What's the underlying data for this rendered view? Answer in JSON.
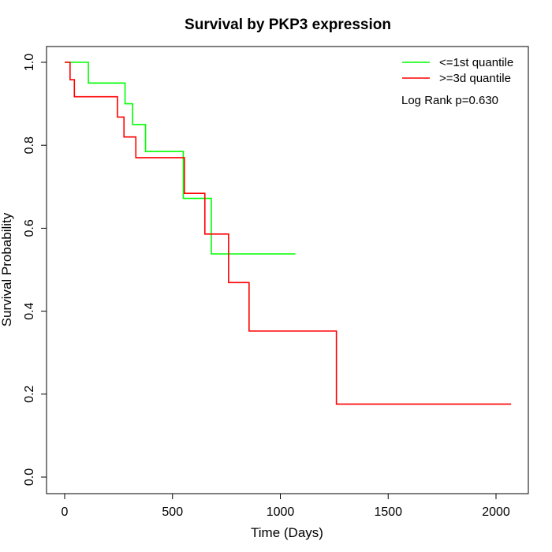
{
  "chart_data": {
    "type": "line",
    "title": "Survival by PKP3 expression",
    "xlabel": "Time (Days)",
    "ylabel": "Survival Probability",
    "xlim": [
      0,
      2070
    ],
    "ylim": [
      0,
      1.0
    ],
    "x_ticks": [
      0,
      500,
      1000,
      1500,
      2000
    ],
    "x_tick_labels": [
      "0",
      "500",
      "1000",
      "1500",
      "2000"
    ],
    "y_ticks": [
      0.0,
      0.2,
      0.4,
      0.6,
      0.8,
      1.0
    ],
    "y_tick_labels": [
      "0.0",
      "0.2",
      "0.4",
      "0.6",
      "0.8",
      "1.0"
    ],
    "legend_position": "top-right",
    "annotation": "Log Rank p=0.630",
    "grid": false,
    "series": [
      {
        "name": "<=1st quantile",
        "color": "#00ff00",
        "step": true,
        "x": [
          0,
          110,
          280,
          315,
          375,
          550,
          680,
          1070
        ],
        "y": [
          1.0,
          0.95,
          0.9,
          0.85,
          0.785,
          0.672,
          0.538,
          0.538
        ]
      },
      {
        "name": ">=3d quantile",
        "color": "#ff0000",
        "step": true,
        "x": [
          0,
          25,
          45,
          245,
          275,
          330,
          555,
          650,
          760,
          855,
          1260,
          2070
        ],
        "y": [
          1.0,
          0.958,
          0.917,
          0.868,
          0.82,
          0.77,
          0.684,
          0.586,
          0.469,
          0.352,
          0.176,
          0.176
        ]
      }
    ]
  }
}
